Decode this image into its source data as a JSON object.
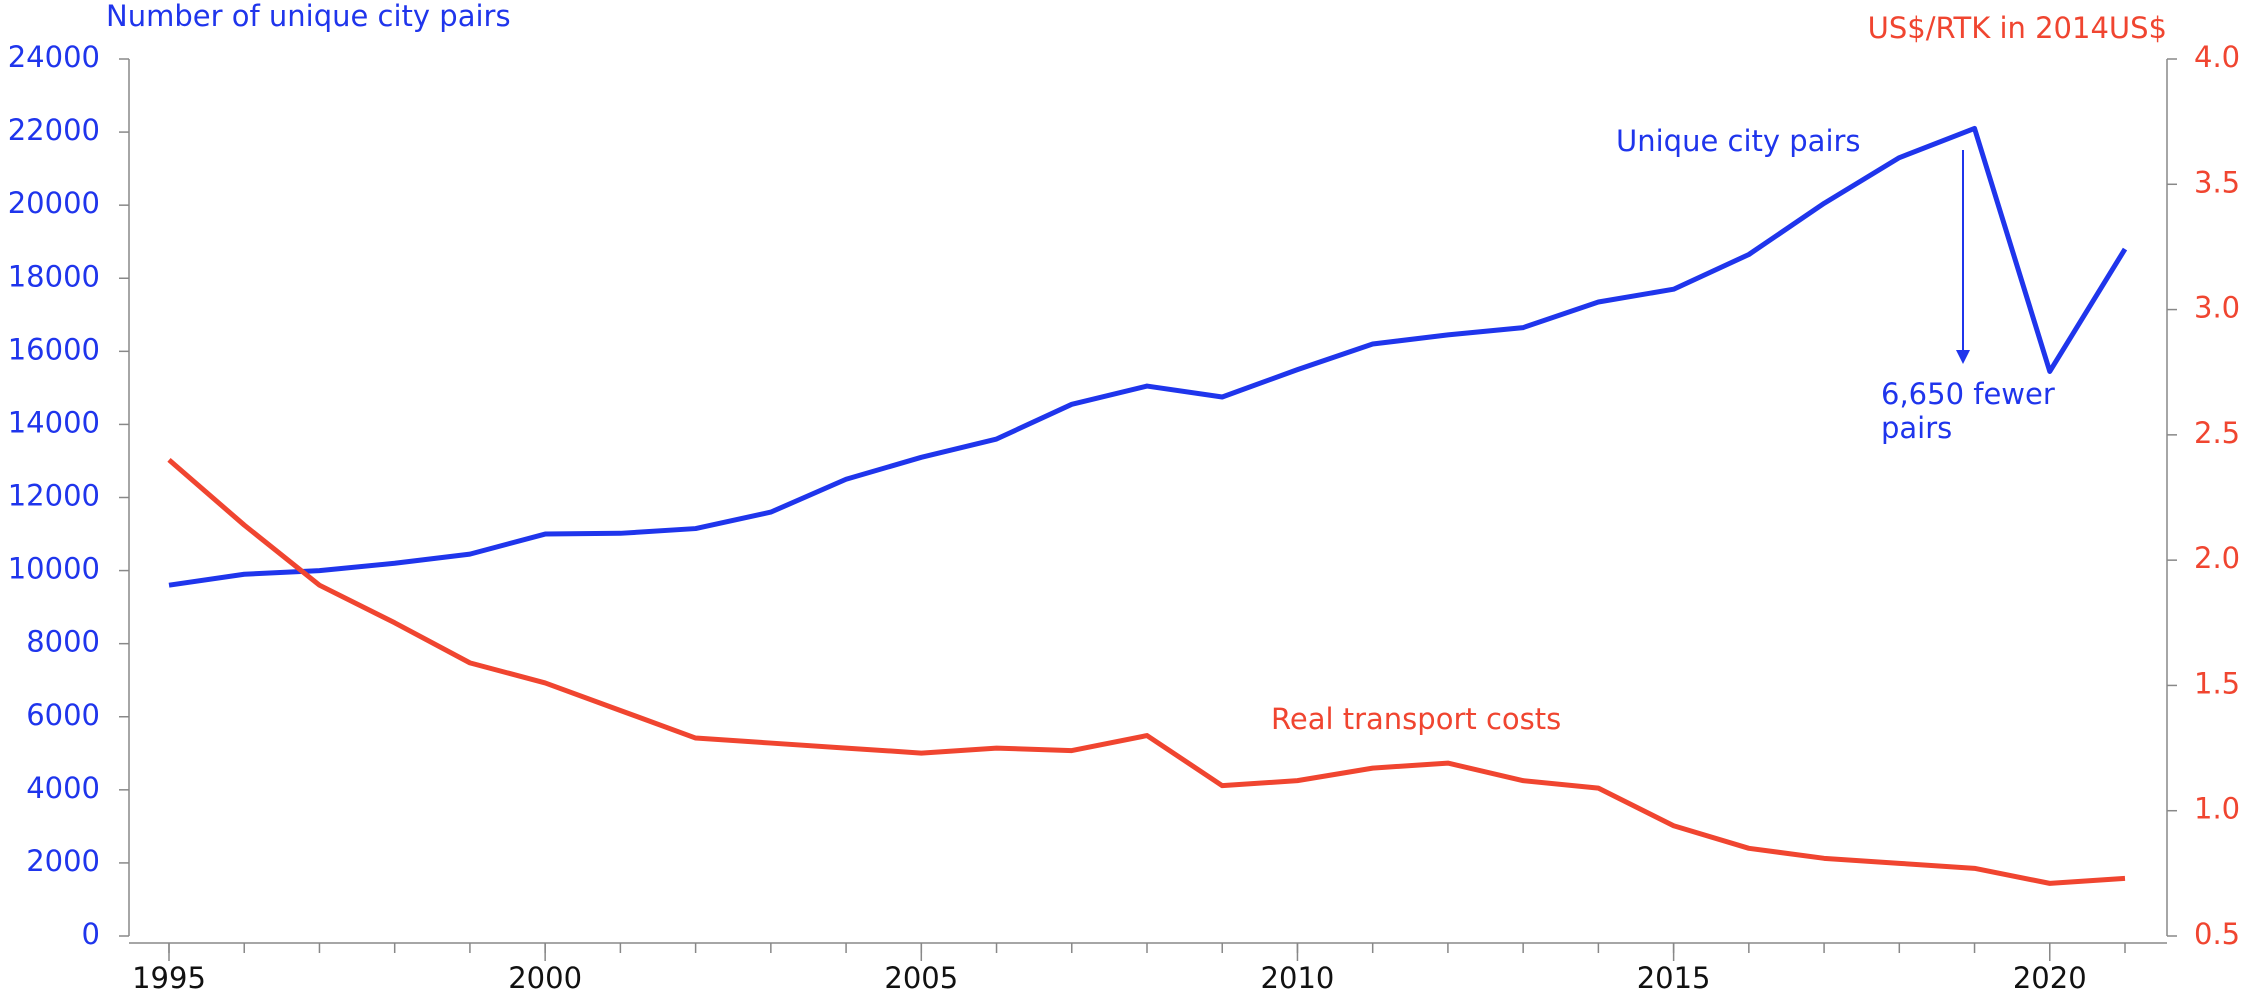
{
  "chart_data": {
    "type": "line",
    "y_label": "Number of unique city pairs",
    "y2_label": "US$/RTK in 2014US$",
    "x": [
      1995,
      1996,
      1997,
      1998,
      1999,
      2000,
      2001,
      2002,
      2003,
      2004,
      2005,
      2006,
      2007,
      2008,
      2009,
      2010,
      2011,
      2012,
      2013,
      2014,
      2015,
      2016,
      2017,
      2018,
      2019,
      2020,
      2021
    ],
    "xlim": [
      1995,
      2021
    ],
    "xticks": [
      1995,
      2000,
      2005,
      2010,
      2015,
      2020
    ],
    "ylim": [
      0,
      24000
    ],
    "yticks": [
      0,
      2000,
      4000,
      6000,
      8000,
      10000,
      12000,
      14000,
      16000,
      18000,
      20000,
      22000,
      24000
    ],
    "y2lim": [
      0.5,
      4.0
    ],
    "y2ticks": [
      0.5,
      {
        "value": 1.0,
        "label": "1.0"
      },
      1.5,
      {
        "value": 2.0,
        "label": "2.0"
      },
      2.5,
      {
        "value": 3.0,
        "label": "3.0"
      },
      3.5,
      {
        "value": 4.0,
        "label": "4.0"
      }
    ],
    "series": [
      {
        "name": "Unique city pairs",
        "color": "#1f35ec",
        "axis": "y",
        "values": [
          9600,
          9900,
          10000,
          10200,
          10450,
          11000,
          11020,
          11150,
          11600,
          12500,
          13100,
          13600,
          14550,
          15050,
          14750,
          15500,
          16200,
          16450,
          16650,
          17350,
          17700,
          18650,
          20050,
          21300,
          22100,
          15450,
          18800
        ]
      },
      {
        "name": "Real transport costs",
        "color": "#f04530",
        "axis": "y2",
        "values": [
          2.4,
          2.14,
          1.9,
          1.75,
          1.59,
          1.51,
          1.4,
          1.29,
          1.27,
          1.25,
          1.23,
          1.25,
          1.24,
          1.3,
          1.1,
          1.12,
          1.17,
          1.19,
          1.12,
          1.09,
          0.94,
          0.85,
          0.81,
          0.79,
          0.77,
          0.71,
          0.73
        ]
      }
    ],
    "annotations": [
      {
        "lines": [
          "6,650 fewer",
          "pairs"
        ]
      }
    ]
  }
}
